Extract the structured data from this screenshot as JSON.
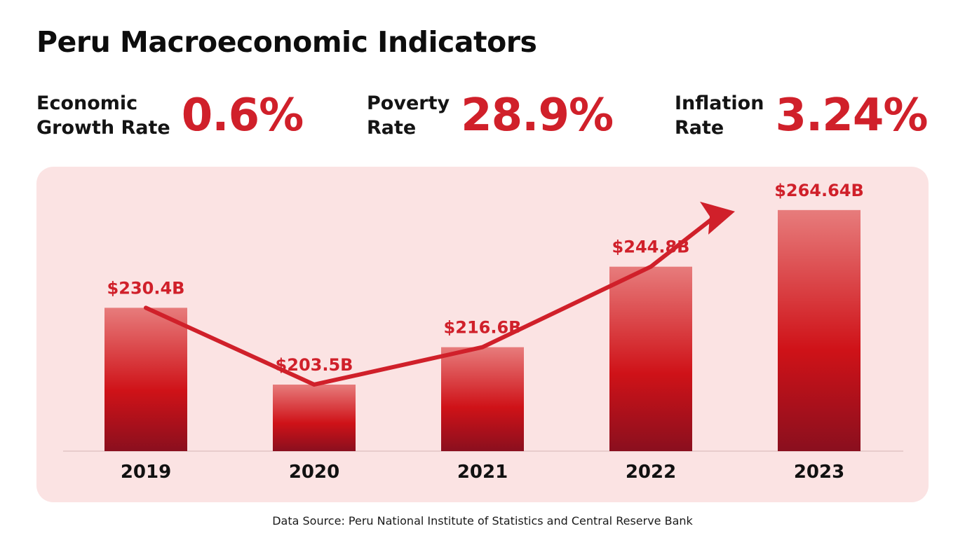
{
  "title": "Peru Macroeconomic Indicators",
  "kpis": [
    {
      "label": "Economic\nGrowth Rate",
      "value": "0.6%"
    },
    {
      "label": "Poverty\nRate",
      "value": "28.9%"
    },
    {
      "label": "Inflation\nRate",
      "value": "3.24%"
    }
  ],
  "chart_data": {
    "type": "bar",
    "categories": [
      "2019",
      "2020",
      "2021",
      "2022",
      "2023"
    ],
    "values": [
      230.4,
      203.5,
      216.6,
      244.8,
      264.64
    ],
    "value_labels": [
      "$230.4B",
      "$203.5B",
      "$216.6B",
      "$244.8B",
      "$264.64B"
    ],
    "unit": "Billion USD",
    "trend_arrow": true,
    "ylim": [
      0,
      270
    ],
    "grid": false,
    "xlabel": "",
    "ylabel": ""
  },
  "colors": {
    "accent": "#d0202a",
    "bar_top": "#e77c7c",
    "bar_mid": "#cf1218",
    "bar_bottom": "#8a0f1e",
    "panel": "#fbe3e3"
  },
  "source": "Data Source: Peru National Institute of Statistics and Central Reserve Bank"
}
